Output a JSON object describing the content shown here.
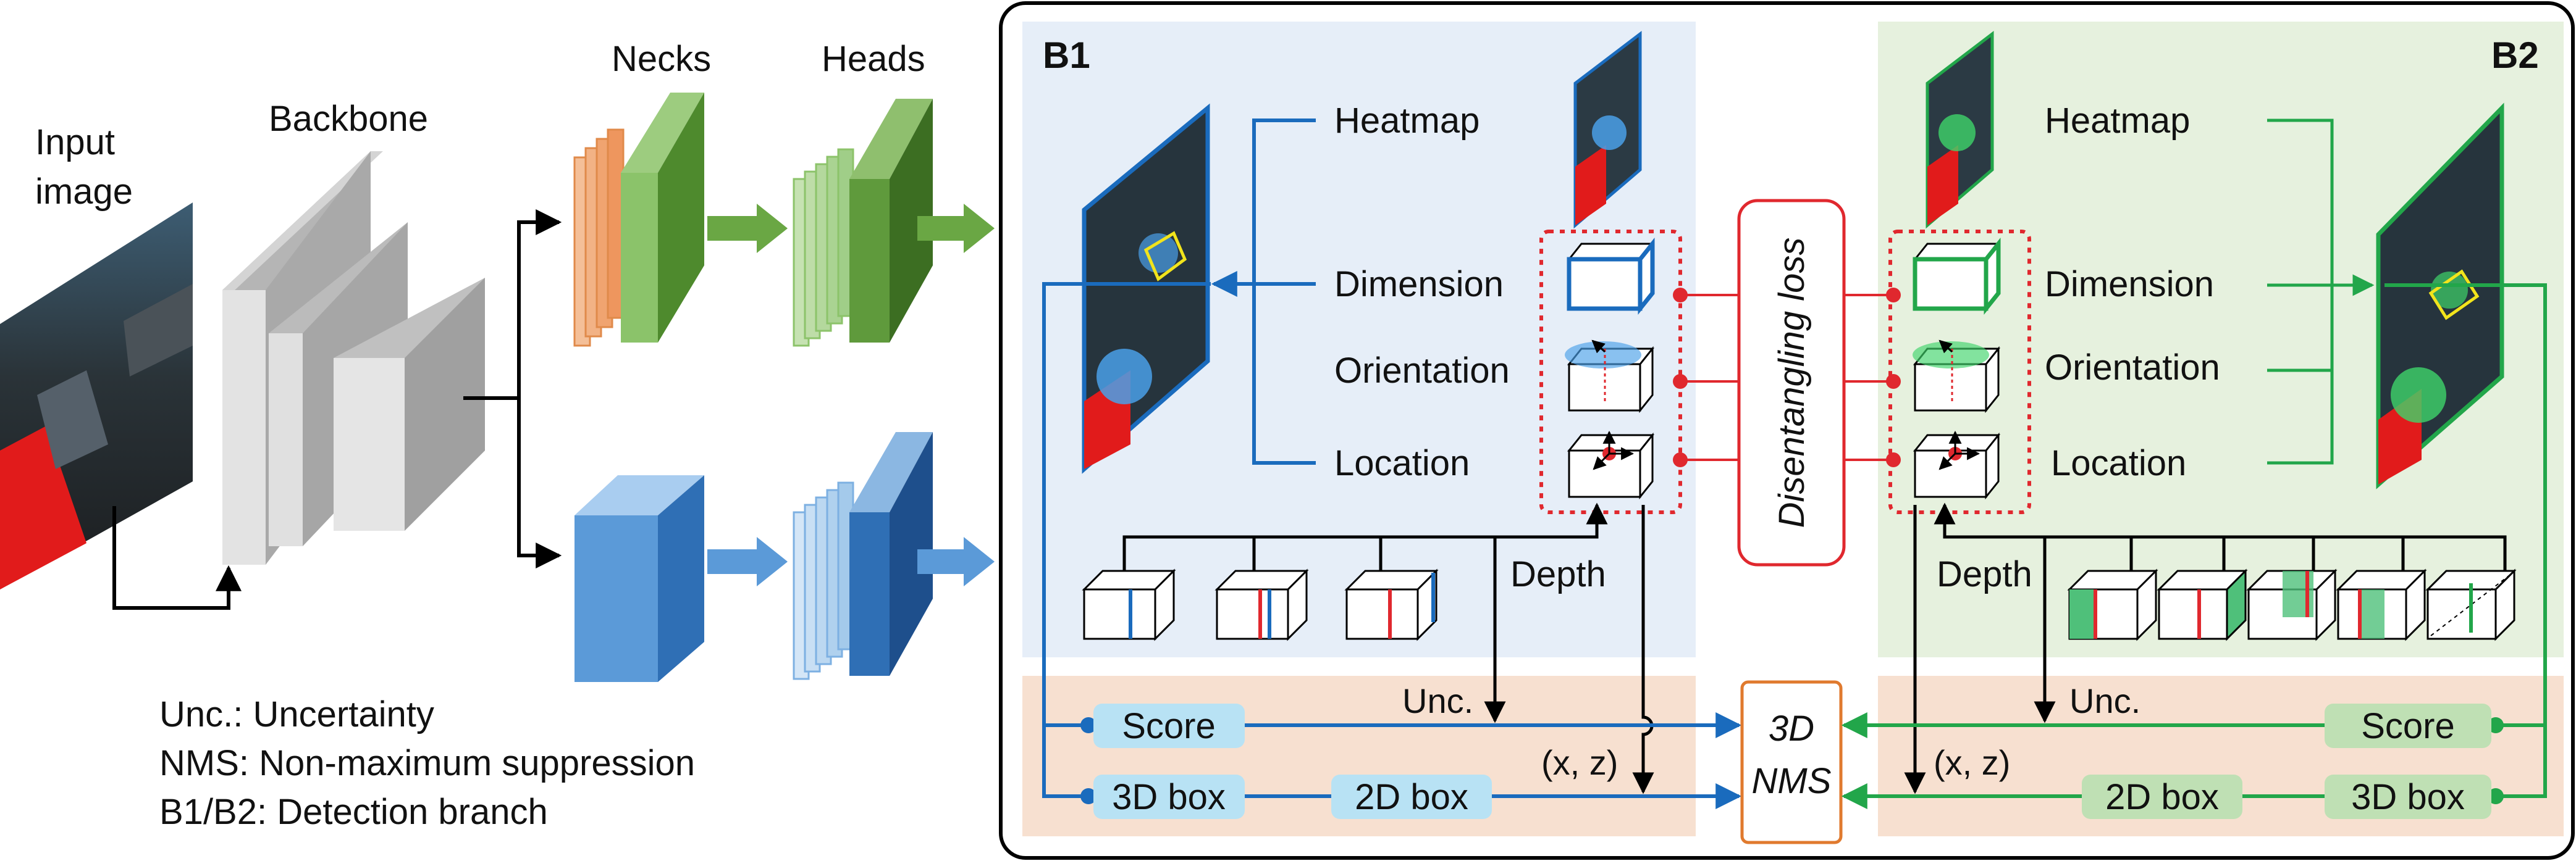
{
  "left": {
    "input_label_1": "Input",
    "input_label_2": "image",
    "backbone_label": "Backbone",
    "necks_label": "Necks",
    "heads_label": "Heads"
  },
  "legend": {
    "unc": "Unc.: Uncertainty",
    "nms": "NMS: Non-maximum suppression",
    "branch": "B1/B2: Detection branch"
  },
  "b1": {
    "title": "B1",
    "heatmap": "Heatmap",
    "dimension": "Dimension",
    "orientation": "Orientation",
    "location": "Location",
    "depth": "Depth"
  },
  "b2": {
    "title": "B2",
    "heatmap": "Heatmap",
    "dimension": "Dimension",
    "orientation": "Orientation",
    "location": "Location",
    "depth": "Depth"
  },
  "center": {
    "disentangling_loss": "Disentangling loss",
    "nms_line1": "3D",
    "nms_line2": "NMS"
  },
  "bottom": {
    "score_left": "Score",
    "box3d_left": "3D box",
    "box2d_left": "2D box",
    "unc_left": "Unc.",
    "xz_left": "(x, z)",
    "score_right": "Score",
    "box3d_right": "3D box",
    "box2d_right": "2D box",
    "unc_right": "Unc.",
    "xz_right": "(x, z)"
  },
  "colors": {
    "blue": "#1a6bbd",
    "green": "#22a64a",
    "red": "#e0282e",
    "b1_bg": "#e6eef8",
    "b2_bg": "#e6f1de",
    "bottom_bg": "#f7e0d0",
    "pill_blue": "#b8e2f4",
    "pill_green": "#bfe0b4"
  }
}
